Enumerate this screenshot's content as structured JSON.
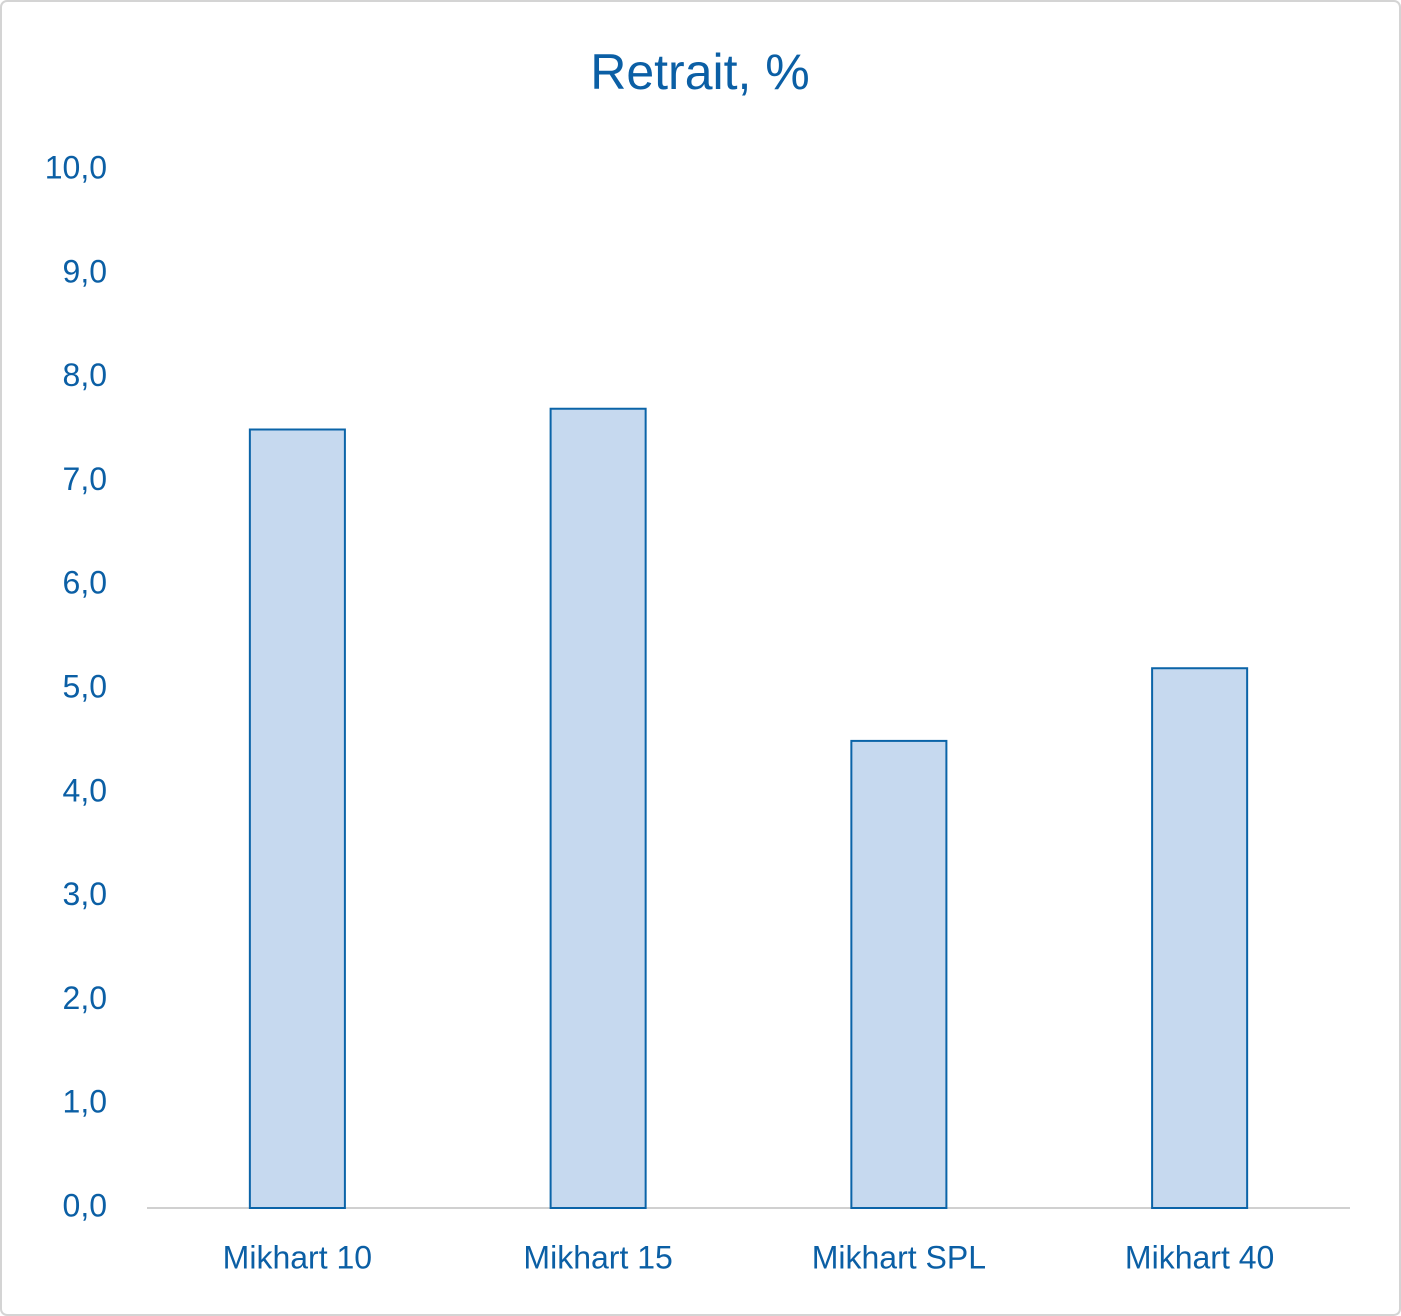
{
  "chart_data": {
    "type": "bar",
    "title": "Retrait, %",
    "categories": [
      "Mikhart 10",
      "Mikhart 15",
      "Mikhart SPL",
      "Mikhart 40"
    ],
    "values": [
      7.5,
      7.7,
      4.5,
      5.2
    ],
    "color": "#c6d9ef",
    "edge_color": "#0b64a8",
    "ylim": [
      0,
      10
    ],
    "yticks": [
      {
        "value": 0,
        "label": "0,0"
      },
      {
        "value": 1,
        "label": "1,0"
      },
      {
        "value": 2,
        "label": "2,0"
      },
      {
        "value": 3,
        "label": "3,0"
      },
      {
        "value": 4,
        "label": "4,0"
      },
      {
        "value": 5,
        "label": "5,0"
      },
      {
        "value": 6,
        "label": "6,0"
      },
      {
        "value": 7,
        "label": "7,0"
      },
      {
        "value": 8,
        "label": "8,0"
      },
      {
        "value": 9,
        "label": "9,0"
      },
      {
        "value": 10,
        "label": "10,0"
      }
    ],
    "grid": false
  }
}
